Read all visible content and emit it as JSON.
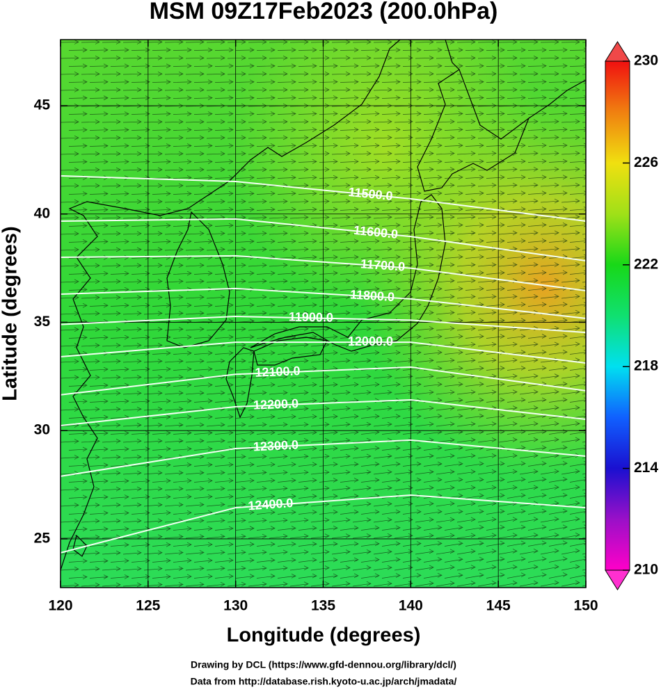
{
  "chart_data": {
    "type": "map",
    "title": "MSM 09Z17Feb2023 (200.0hPa)",
    "x_label": "Longitude (degrees)",
    "y_label": "Latitude  (degrees)",
    "xlim": [
      120,
      150
    ],
    "ylim": [
      22.75,
      48.05
    ],
    "xticks": [
      120,
      125,
      130,
      135,
      140,
      145,
      150
    ],
    "yticks": [
      25,
      30,
      35,
      40,
      45
    ],
    "grid": true,
    "colorbar": {
      "lim": [
        210,
        230
      ],
      "ticks": [
        210,
        214,
        218,
        222,
        226,
        230
      ]
    },
    "contours": {
      "lons": [
        120,
        130,
        140,
        150
      ],
      "levels": [
        {
          "value": 11500,
          "label": "11500.0",
          "lats": [
            41.76,
            41.5,
            40.7,
            39.67
          ],
          "label_lon": 137.7
        },
        {
          "value": 11600,
          "label": "11600.0",
          "lats": [
            39.67,
            39.77,
            38.96,
            37.84
          ],
          "label_lon": 138
        },
        {
          "value": 11700,
          "label": "11700.0",
          "lats": [
            38.0,
            38.07,
            37.5,
            36.46
          ],
          "label_lon": 138.4
        },
        {
          "value": 11800,
          "label": "11800.0",
          "lats": [
            36.3,
            36.56,
            36.08,
            35.18
          ],
          "label_lon": 137.8
        },
        {
          "value": 11900,
          "label": "11900.0",
          "lats": [
            34.9,
            35.27,
            35.1,
            34.53
          ],
          "label_lon": 134.3
        },
        {
          "value": 12000,
          "label": "12000.0",
          "lats": [
            33.41,
            34.08,
            34.08,
            33.12
          ],
          "label_lon": 137.7
        },
        {
          "value": 12100,
          "label": "12100.0",
          "lats": [
            31.65,
            32.6,
            32.93,
            31.84
          ],
          "label_lon": 132.4
        },
        {
          "value": 12200,
          "label": "12200.0",
          "lats": [
            30.23,
            31.1,
            31.42,
            30.52
          ],
          "label_lon": 132.3
        },
        {
          "value": 12300,
          "label": "12300.0",
          "lats": [
            27.89,
            29.17,
            29.56,
            28.82
          ],
          "label_lon": 132.3
        },
        {
          "value": 12400,
          "label": "12400.0",
          "lats": [
            24.36,
            26.44,
            27.02,
            26.44
          ],
          "label_lon": 132
        }
      ]
    },
    "credits": [
      "Drawing by DCL (https://www.gfd-dennou.org/library/dcl/)",
      "Data from http://database.rish.kyoto-u.ac.jp/arch/jmadata/"
    ]
  }
}
